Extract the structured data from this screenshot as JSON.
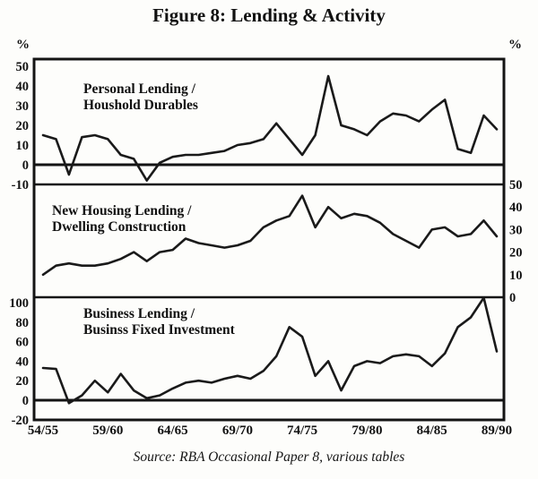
{
  "figure": {
    "title": "Figure 8: Lending & Activity",
    "unit_left": "%",
    "unit_right": "%",
    "source": "Source: RBA Occasional Paper 8, various tables"
  },
  "chart_data": {
    "type": "line",
    "title": "Figure 8: Lending & Activity",
    "x_description": "Annual financial years from 54/55 to 89/90 (36 points per series)",
    "x_ticks": [
      {
        "index": 0,
        "label": "54/55"
      },
      {
        "index": 5,
        "label": "59/60"
      },
      {
        "index": 10,
        "label": "64/65"
      },
      {
        "index": 15,
        "label": "69/70"
      },
      {
        "index": 20,
        "label": "74/75"
      },
      {
        "index": 25,
        "label": "79/80"
      },
      {
        "index": 30,
        "label": "84/85"
      },
      {
        "index": 35,
        "label": "89/90"
      }
    ],
    "line_color": "#1a1a1a",
    "grid": false,
    "panels": [
      {
        "id": "personal",
        "label_lines": [
          "Personal Lending /",
          "Houshold Durables"
        ],
        "axis": "left",
        "ticks": [
          50,
          40,
          30,
          20,
          10,
          0,
          -10
        ],
        "ylim": [
          -12,
          53
        ],
        "zero_line": true,
        "values": [
          15,
          13,
          -5,
          14,
          15,
          13,
          5,
          3,
          -8,
          1,
          4,
          5,
          5,
          6,
          7,
          10,
          11,
          13,
          21,
          13,
          5,
          15,
          45,
          20,
          18,
          15,
          22,
          26,
          25,
          22,
          28,
          33,
          8,
          6,
          25,
          18
        ]
      },
      {
        "id": "housing",
        "label_lines": [
          "New Housing Lending /",
          "Dwelling Construction"
        ],
        "axis": "right",
        "ticks": [
          50,
          40,
          30,
          20,
          10,
          0
        ],
        "ylim": [
          0,
          50
        ],
        "zero_line": false,
        "values": [
          10,
          14,
          15,
          14,
          14,
          15,
          17,
          20,
          16,
          20,
          21,
          26,
          24,
          23,
          22,
          23,
          25,
          31,
          34,
          36,
          45,
          31,
          40,
          35,
          37,
          36,
          33,
          28,
          25,
          22,
          30,
          31,
          27,
          28,
          34,
          27
        ]
      },
      {
        "id": "business",
        "label_lines": [
          "Business Lending /",
          "Businss Fixed Investment"
        ],
        "axis": "left",
        "ticks": [
          100,
          80,
          60,
          40,
          20,
          0,
          -20
        ],
        "ylim": [
          -20,
          105
        ],
        "zero_line": true,
        "values": [
          33,
          32,
          -3,
          5,
          20,
          8,
          27,
          10,
          2,
          5,
          12,
          18,
          20,
          18,
          22,
          25,
          22,
          30,
          45,
          75,
          65,
          25,
          40,
          10,
          35,
          40,
          38,
          45,
          47,
          45,
          35,
          48,
          75,
          85,
          105,
          50
        ]
      }
    ]
  }
}
